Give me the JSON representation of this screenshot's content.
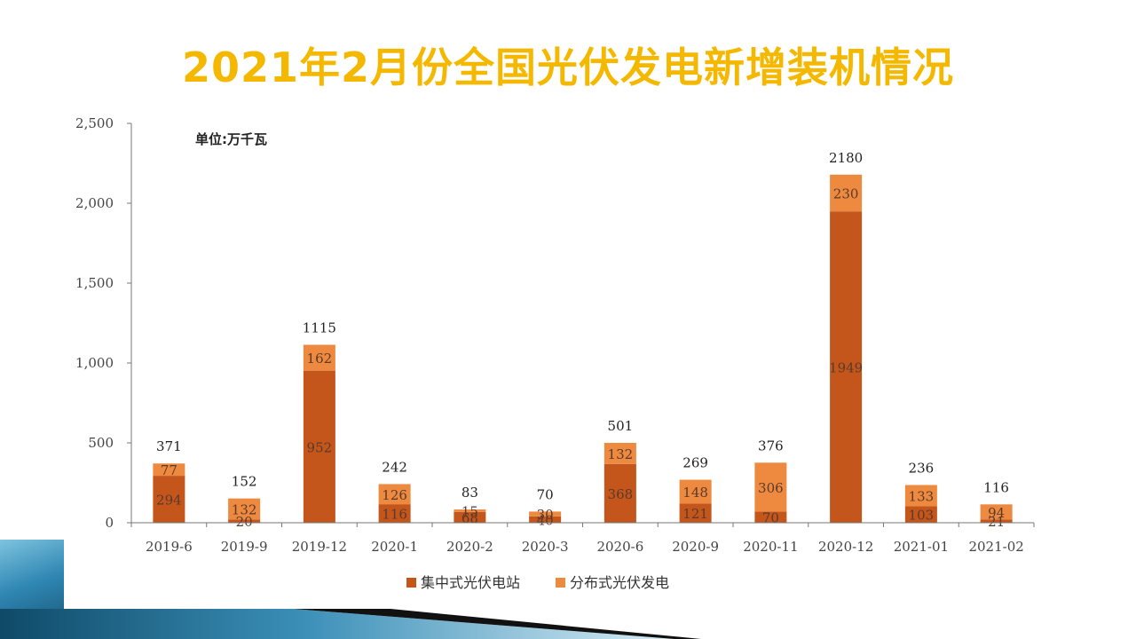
{
  "title": "2021年2月份全国光伏发电新增装机情况",
  "chart_data": {
    "type": "bar",
    "stacked": true,
    "unit_note": "单位:万千瓦",
    "categories": [
      "2019-6",
      "2019-9",
      "2019-12",
      "2020-1",
      "2020-2",
      "2020-3",
      "2020-6",
      "2020-9",
      "2020-11",
      "2020-12",
      "2021-01",
      "2021-02"
    ],
    "series": [
      {
        "name": "集中式光伏电站",
        "color": "#c4561c",
        "values": [
          294,
          20,
          952,
          116,
          68,
          40,
          368,
          121,
          70,
          1949,
          103,
          21
        ]
      },
      {
        "name": "分布式光伏发电",
        "color": "#ee8a3f",
        "values": [
          77,
          132,
          162,
          126,
          15,
          30,
          132,
          148,
          306,
          230,
          133,
          94
        ]
      }
    ],
    "totals": [
      371,
      152,
      1115,
      242,
      83,
      70,
      501,
      269,
      376,
      2180,
      236,
      116
    ],
    "y_ticks": [
      "0",
      "500",
      "1,000",
      "1,500",
      "2,000",
      "2,500"
    ],
    "ylim": [
      0,
      2500
    ],
    "grid": false,
    "legend_position": "bottom"
  }
}
